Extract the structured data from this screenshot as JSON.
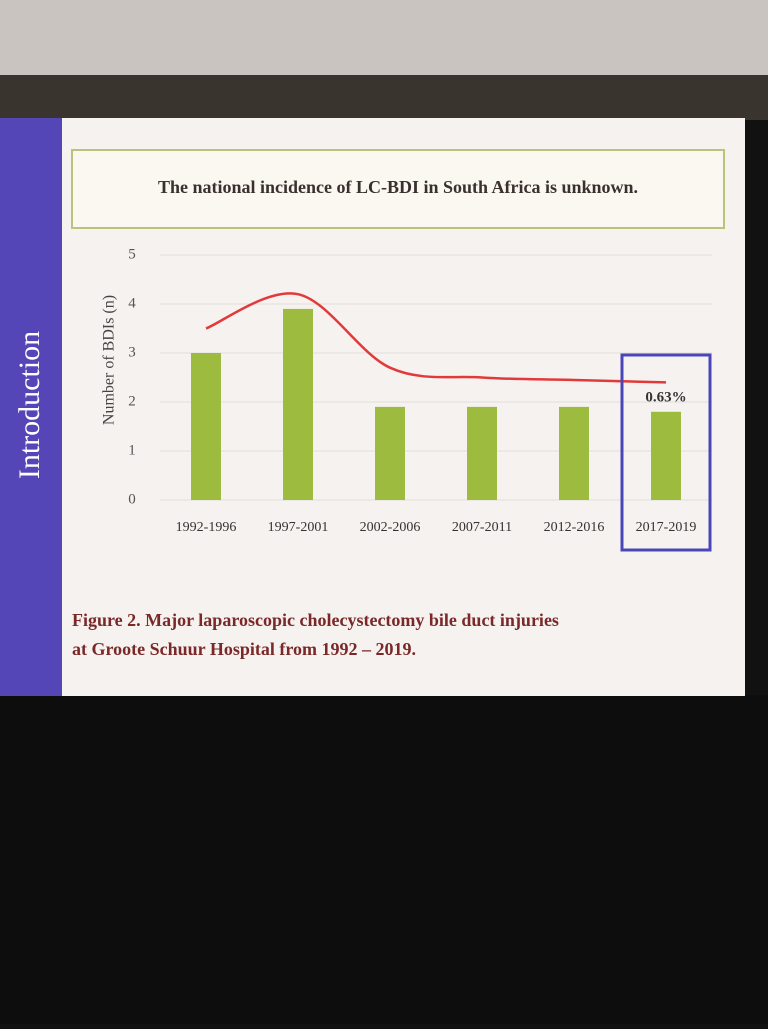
{
  "side_label": "Introduction",
  "chart_data": {
    "type": "bar",
    "title": "The national incidence of LC-BDI in South Africa is unknown.",
    "ylabel": "Number of BDIs (n)",
    "categories": [
      "1992-1996",
      "1997-2001",
      "2002-2006",
      "2007-2011",
      "2012-2016",
      "2017-2019"
    ],
    "values": [
      3,
      3.9,
      1.9,
      1.9,
      1.9,
      1.8
    ],
    "color": "#9dbb3e",
    "ylim": [
      0,
      5
    ],
    "yticks": [
      0,
      1,
      2,
      3,
      4,
      5
    ],
    "grid": true,
    "trend": {
      "color": "#e23a3a",
      "values": [
        3.5,
        4.2,
        2.7,
        2.5,
        2.45,
        2.4
      ]
    },
    "annotations": [
      {
        "text": "0.63%",
        "category": "2017-2019",
        "color": "#4a46b8"
      }
    ],
    "caption": [
      "Figure 2. Major laparoscopic cholecystectomy bile duct injuries",
      "at Groote Schuur Hospital from 1992 – 2019."
    ]
  }
}
